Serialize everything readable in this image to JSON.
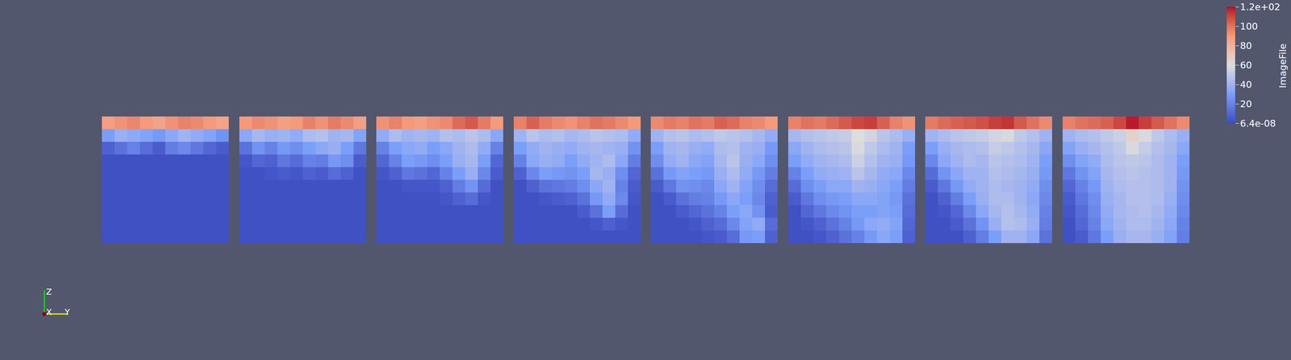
{
  "chart_data": {
    "type": "heatmap",
    "tick_labels": false,
    "axes_labels": [
      "Z",
      "X",
      "Y"
    ],
    "colorbar": {
      "title": "ImageFile",
      "range": [
        6.4e-08,
        120
      ],
      "range_labels": [
        "6.4e-08",
        "1.2e+02"
      ],
      "ticks": [
        20,
        40,
        60,
        80,
        100
      ]
    },
    "panels": [
      [
        [
          88,
          92,
          95,
          90,
          86,
          92,
          96,
          94,
          90,
          86
        ],
        [
          30,
          38,
          35,
          32,
          28,
          34,
          40,
          36,
          32,
          26
        ],
        [
          8,
          14,
          20,
          12,
          6,
          18,
          22,
          16,
          10,
          6
        ],
        [
          2,
          2,
          2,
          2,
          2,
          2,
          2,
          2,
          2,
          2
        ],
        [
          2,
          2,
          2,
          2,
          2,
          2,
          2,
          2,
          2,
          2
        ],
        [
          2,
          2,
          2,
          2,
          2,
          2,
          2,
          2,
          2,
          2
        ],
        [
          2,
          2,
          2,
          2,
          2,
          2,
          2,
          2,
          2,
          2
        ],
        [
          2,
          2,
          2,
          2,
          2,
          2,
          2,
          2,
          2,
          2
        ],
        [
          2,
          2,
          2,
          2,
          2,
          2,
          2,
          2,
          2,
          2
        ],
        [
          2,
          2,
          2,
          2,
          2,
          2,
          2,
          2,
          2,
          2
        ]
      ],
      [
        [
          90,
          94,
          92,
          88,
          90,
          96,
          92,
          98,
          94,
          88
        ],
        [
          34,
          42,
          38,
          40,
          36,
          44,
          46,
          40,
          42,
          32
        ],
        [
          14,
          26,
          20,
          28,
          24,
          30,
          34,
          38,
          30,
          16
        ],
        [
          4,
          10,
          8,
          16,
          12,
          20,
          18,
          28,
          24,
          6
        ],
        [
          2,
          2,
          4,
          6,
          4,
          8,
          6,
          12,
          8,
          2
        ],
        [
          2,
          2,
          2,
          2,
          2,
          2,
          2,
          2,
          2,
          2
        ],
        [
          2,
          2,
          2,
          2,
          2,
          2,
          2,
          2,
          2,
          2
        ],
        [
          2,
          2,
          2,
          2,
          2,
          2,
          2,
          2,
          2,
          2
        ],
        [
          2,
          2,
          2,
          2,
          2,
          2,
          2,
          2,
          2,
          2
        ],
        [
          2,
          2,
          2,
          2,
          2,
          2,
          2,
          2,
          2,
          2
        ]
      ],
      [
        [
          92,
          96,
          90,
          88,
          92,
          94,
          102,
          106,
          98,
          90
        ],
        [
          36,
          44,
          40,
          42,
          40,
          46,
          44,
          48,
          44,
          34
        ],
        [
          20,
          30,
          34,
          36,
          30,
          34,
          40,
          44,
          36,
          20
        ],
        [
          10,
          20,
          30,
          28,
          24,
          30,
          38,
          42,
          30,
          10
        ],
        [
          4,
          8,
          16,
          14,
          10,
          20,
          30,
          38,
          22,
          6
        ],
        [
          2,
          2,
          4,
          4,
          4,
          8,
          18,
          26,
          12,
          2
        ],
        [
          2,
          2,
          2,
          2,
          2,
          4,
          8,
          12,
          4,
          2
        ],
        [
          2,
          2,
          2,
          2,
          2,
          2,
          2,
          2,
          2,
          2
        ],
        [
          2,
          2,
          2,
          2,
          2,
          2,
          2,
          2,
          2,
          2
        ],
        [
          2,
          2,
          2,
          2,
          2,
          2,
          2,
          2,
          2,
          2
        ]
      ],
      [
        [
          96,
          104,
          98,
          94,
          92,
          96,
          100,
          98,
          94,
          90
        ],
        [
          40,
          48,
          44,
          46,
          42,
          44,
          48,
          46,
          44,
          36
        ],
        [
          30,
          36,
          40,
          38,
          36,
          40,
          42,
          40,
          38,
          26
        ],
        [
          20,
          34,
          38,
          36,
          30,
          36,
          40,
          44,
          34,
          18
        ],
        [
          8,
          22,
          30,
          28,
          26,
          30,
          42,
          38,
          24,
          10
        ],
        [
          2,
          8,
          14,
          16,
          18,
          24,
          34,
          40,
          20,
          6
        ],
        [
          2,
          2,
          4,
          6,
          8,
          14,
          28,
          36,
          22,
          4
        ],
        [
          2,
          2,
          2,
          2,
          2,
          6,
          14,
          30,
          12,
          2
        ],
        [
          2,
          2,
          2,
          2,
          2,
          2,
          4,
          8,
          4,
          2
        ],
        [
          2,
          2,
          2,
          2,
          2,
          2,
          2,
          2,
          2,
          2
        ]
      ],
      [
        [
          94,
          98,
          96,
          100,
          98,
          104,
          102,
          96,
          94,
          90
        ],
        [
          40,
          46,
          48,
          44,
          46,
          50,
          48,
          46,
          42,
          36
        ],
        [
          30,
          40,
          42,
          38,
          36,
          44,
          46,
          40,
          38,
          28
        ],
        [
          24,
          36,
          40,
          34,
          32,
          42,
          48,
          38,
          34,
          24
        ],
        [
          14,
          28,
          32,
          30,
          28,
          38,
          44,
          36,
          28,
          18
        ],
        [
          6,
          16,
          26,
          24,
          22,
          34,
          40,
          32,
          24,
          12
        ],
        [
          2,
          6,
          14,
          18,
          20,
          28,
          34,
          30,
          22,
          8
        ],
        [
          2,
          2,
          6,
          10,
          14,
          20,
          30,
          34,
          26,
          6
        ],
        [
          2,
          2,
          2,
          4,
          8,
          12,
          22,
          32,
          36,
          12
        ],
        [
          2,
          2,
          2,
          2,
          4,
          6,
          12,
          28,
          30,
          8
        ]
      ],
      [
        [
          96,
          100,
          98,
          102,
          106,
          110,
          112,
          104,
          96,
          92
        ],
        [
          42,
          46,
          48,
          50,
          52,
          60,
          56,
          48,
          44,
          38
        ],
        [
          34,
          40,
          44,
          46,
          48,
          58,
          50,
          44,
          40,
          30
        ],
        [
          30,
          36,
          40,
          42,
          44,
          54,
          46,
          40,
          38,
          28
        ],
        [
          20,
          30,
          36,
          38,
          40,
          48,
          42,
          36,
          34,
          22
        ],
        [
          12,
          24,
          30,
          34,
          34,
          40,
          38,
          34,
          30,
          18
        ],
        [
          6,
          16,
          24,
          28,
          30,
          34,
          34,
          32,
          28,
          14
        ],
        [
          2,
          10,
          16,
          22,
          26,
          30,
          30,
          32,
          30,
          12
        ],
        [
          2,
          4,
          8,
          14,
          20,
          28,
          34,
          36,
          32,
          10
        ],
        [
          2,
          2,
          4,
          8,
          14,
          20,
          28,
          34,
          30,
          8
        ]
      ],
      [
        [
          98,
          102,
          104,
          106,
          108,
          112,
          114,
          106,
          100,
          94
        ],
        [
          40,
          44,
          48,
          50,
          52,
          56,
          58,
          50,
          46,
          40
        ],
        [
          30,
          38,
          42,
          44,
          46,
          52,
          50,
          46,
          42,
          34
        ],
        [
          22,
          34,
          40,
          44,
          42,
          48,
          46,
          44,
          40,
          30
        ],
        [
          12,
          26,
          34,
          40,
          40,
          46,
          44,
          42,
          38,
          28
        ],
        [
          6,
          16,
          28,
          36,
          40,
          44,
          42,
          40,
          36,
          24
        ],
        [
          2,
          8,
          18,
          30,
          38,
          44,
          44,
          40,
          34,
          22
        ],
        [
          2,
          4,
          10,
          22,
          34,
          42,
          46,
          42,
          36,
          20
        ],
        [
          2,
          2,
          6,
          14,
          26,
          38,
          46,
          44,
          38,
          18
        ],
        [
          2,
          2,
          2,
          8,
          18,
          30,
          40,
          40,
          34,
          14
        ]
      ],
      [
        [
          96,
          100,
          102,
          104,
          110,
          118,
          112,
          106,
          100,
          94
        ],
        [
          40,
          44,
          46,
          50,
          54,
          66,
          58,
          50,
          44,
          38
        ],
        [
          32,
          38,
          42,
          46,
          50,
          58,
          52,
          46,
          42,
          34
        ],
        [
          24,
          32,
          36,
          44,
          48,
          50,
          48,
          44,
          40,
          30
        ],
        [
          16,
          26,
          32,
          42,
          46,
          48,
          46,
          44,
          40,
          28
        ],
        [
          10,
          20,
          28,
          40,
          44,
          46,
          46,
          44,
          40,
          26
        ],
        [
          6,
          16,
          24,
          38,
          42,
          46,
          46,
          44,
          38,
          24
        ],
        [
          4,
          12,
          22,
          36,
          42,
          44,
          46,
          42,
          36,
          22
        ],
        [
          2,
          10,
          20,
          34,
          40,
          44,
          44,
          40,
          34,
          20
        ],
        [
          2,
          6,
          16,
          30,
          38,
          42,
          42,
          38,
          32,
          18
        ]
      ]
    ]
  }
}
